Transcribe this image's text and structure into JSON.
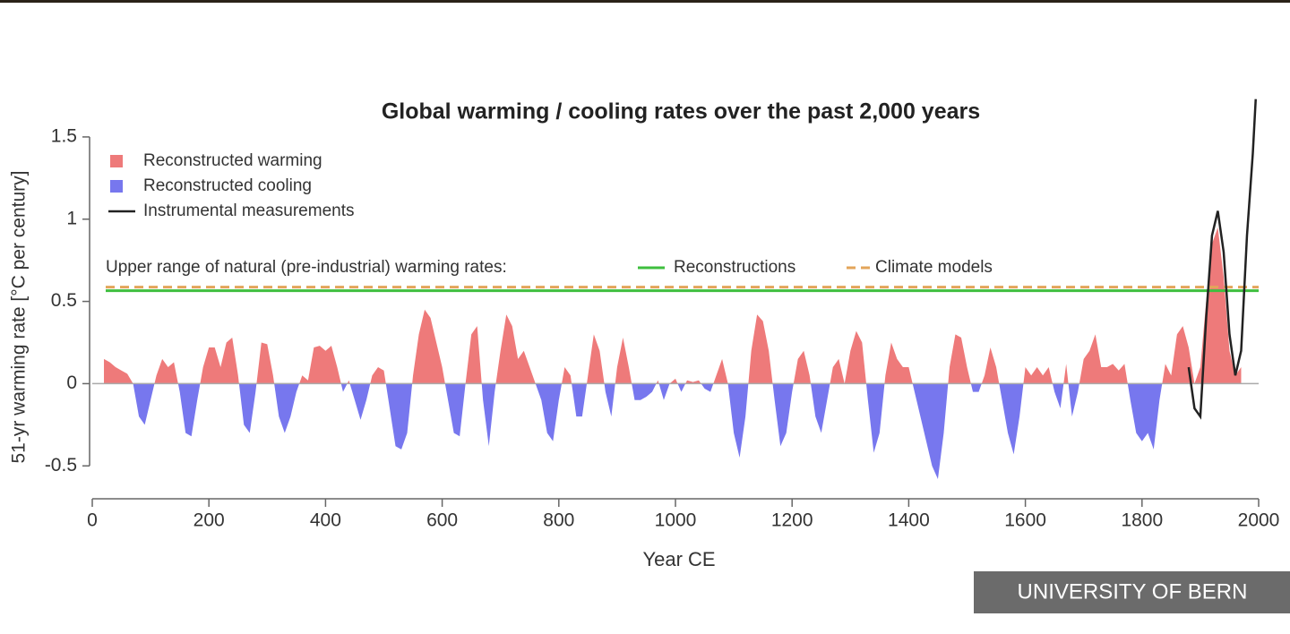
{
  "chart_data": {
    "type": "area",
    "title": "Global warming / cooling rates over the past 2,000 years",
    "xlabel": "Year CE",
    "ylabel": "51-yr warming rate [°C per century]",
    "xlim": [
      0,
      2000
    ],
    "xticks": [
      0,
      200,
      400,
      600,
      800,
      1000,
      1200,
      1400,
      1600,
      1800,
      2000
    ],
    "ylim": [
      -0.7,
      1.75
    ],
    "yticks": [
      -0.5,
      0,
      0.5,
      1,
      1.5
    ],
    "series": [
      {
        "name": "Reconstructed warming",
        "color": "#ee7a7a"
      },
      {
        "name": "Reconstructed cooling",
        "color": "#7777ee"
      }
    ],
    "reconstruction": {
      "x": [
        20,
        30,
        40,
        50,
        60,
        70,
        80,
        90,
        100,
        110,
        120,
        130,
        140,
        150,
        160,
        170,
        180,
        190,
        200,
        210,
        220,
        230,
        240,
        250,
        260,
        270,
        280,
        290,
        300,
        310,
        320,
        330,
        340,
        350,
        360,
        370,
        380,
        390,
        400,
        410,
        420,
        430,
        440,
        450,
        460,
        470,
        480,
        490,
        500,
        510,
        520,
        530,
        540,
        550,
        560,
        570,
        580,
        590,
        600,
        610,
        620,
        630,
        640,
        650,
        660,
        670,
        680,
        690,
        700,
        710,
        720,
        730,
        740,
        750,
        760,
        770,
        780,
        790,
        800,
        810,
        820,
        830,
        840,
        850,
        860,
        870,
        880,
        890,
        900,
        910,
        920,
        930,
        940,
        950,
        960,
        970,
        980,
        990,
        1000,
        1010,
        1020,
        1030,
        1040,
        1050,
        1060,
        1070,
        1080,
        1090,
        1100,
        1110,
        1120,
        1130,
        1140,
        1150,
        1160,
        1170,
        1180,
        1190,
        1200,
        1210,
        1220,
        1230,
        1240,
        1250,
        1260,
        1270,
        1280,
        1290,
        1300,
        1310,
        1320,
        1330,
        1340,
        1350,
        1360,
        1370,
        1380,
        1390,
        1400,
        1410,
        1420,
        1430,
        1440,
        1450,
        1460,
        1470,
        1480,
        1490,
        1500,
        1510,
        1520,
        1530,
        1540,
        1550,
        1560,
        1570,
        1580,
        1590,
        1600,
        1610,
        1620,
        1630,
        1640,
        1650,
        1660,
        1670,
        1680,
        1690,
        1700,
        1710,
        1720,
        1730,
        1740,
        1750,
        1760,
        1770,
        1780,
        1790,
        1800,
        1810,
        1820,
        1830,
        1840,
        1850,
        1860,
        1870,
        1880,
        1890,
        1900,
        1910,
        1920,
        1930,
        1940,
        1950,
        1960,
        1970
      ],
      "values": [
        0.15,
        0.13,
        0.1,
        0.08,
        0.06,
        0.0,
        -0.2,
        -0.25,
        -0.1,
        0.05,
        0.15,
        0.1,
        0.13,
        -0.05,
        -0.3,
        -0.32,
        -0.1,
        0.1,
        0.22,
        0.22,
        0.1,
        0.25,
        0.28,
        0.05,
        -0.25,
        -0.3,
        -0.05,
        0.25,
        0.24,
        0.05,
        -0.2,
        -0.3,
        -0.2,
        -0.05,
        0.05,
        0.02,
        0.22,
        0.23,
        0.2,
        0.23,
        0.1,
        -0.05,
        0.02,
        -0.1,
        -0.22,
        -0.1,
        0.05,
        0.1,
        0.08,
        -0.15,
        -0.38,
        -0.4,
        -0.3,
        0.05,
        0.3,
        0.45,
        0.4,
        0.25,
        0.1,
        -0.1,
        -0.3,
        -0.32,
        0.0,
        0.3,
        0.35,
        -0.1,
        -0.38,
        -0.05,
        0.2,
        0.42,
        0.35,
        0.15,
        0.2,
        0.1,
        0.0,
        -0.1,
        -0.3,
        -0.35,
        -0.1,
        0.1,
        0.05,
        -0.2,
        -0.2,
        0.05,
        0.3,
        0.2,
        -0.05,
        -0.2,
        0.1,
        0.28,
        0.1,
        -0.1,
        -0.1,
        -0.08,
        -0.05,
        0.02,
        -0.1,
        0.0,
        0.03,
        -0.05,
        0.02,
        0.01,
        0.02,
        -0.03,
        -0.05,
        0.05,
        0.15,
        0.0,
        -0.3,
        -0.45,
        -0.2,
        0.2,
        0.42,
        0.38,
        0.2,
        -0.1,
        -0.38,
        -0.3,
        -0.05,
        0.15,
        0.2,
        0.05,
        -0.2,
        -0.3,
        -0.1,
        0.1,
        0.15,
        0.0,
        0.2,
        0.32,
        0.25,
        -0.1,
        -0.42,
        -0.3,
        0.05,
        0.25,
        0.15,
        0.1,
        0.1,
        -0.05,
        -0.2,
        -0.35,
        -0.5,
        -0.58,
        -0.3,
        0.1,
        0.3,
        0.28,
        0.1,
        -0.05,
        -0.05,
        0.05,
        0.22,
        0.1,
        -0.1,
        -0.3,
        -0.43,
        -0.2,
        0.1,
        0.05,
        0.1,
        0.05,
        0.1,
        -0.05,
        -0.15,
        0.12,
        -0.2,
        -0.05,
        0.15,
        0.2,
        0.3,
        0.1,
        0.1,
        0.12,
        0.08,
        0.12,
        -0.1,
        -0.3,
        -0.35,
        -0.3,
        -0.4,
        -0.1,
        0.12,
        0.05,
        0.3,
        0.35,
        0.22,
        0.0,
        0.1,
        0.5,
        0.85,
        0.95,
        0.65,
        0.2,
        0.05,
        0.1
      ]
    },
    "instrumental": {
      "name": "Instrumental measurements",
      "color": "#222222",
      "x": [
        1880,
        1890,
        1900,
        1910,
        1920,
        1930,
        1940,
        1950,
        1960,
        1970,
        1980,
        1990,
        1995
      ],
      "values": [
        0.1,
        -0.15,
        -0.2,
        0.4,
        0.9,
        1.05,
        0.8,
        0.3,
        0.05,
        0.2,
        0.9,
        1.4,
        1.73
      ]
    },
    "reference_label": "Upper range of natural (pre-industrial) warming rates:",
    "reference_lines": [
      {
        "name": "Reconstructions",
        "value": 0.565,
        "color": "#3fbf3f",
        "style": "solid"
      },
      {
        "name": "Climate models",
        "value": 0.587,
        "color": "#e3a55a",
        "style": "dashed"
      }
    ],
    "source": "UNIVERSITY OF BERN"
  }
}
